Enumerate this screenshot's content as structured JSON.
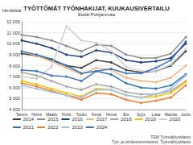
{
  "chart_data": {
    "type": "line",
    "title": "TYÖTTÖMÄT TYÖNHAKIJAT, KUUKAUSIVERTAILU",
    "subtitle": "Etelä-Pohjanmaa",
    "y_label": "Henkilöä",
    "source": [
      "TEM Työnvälitystilasto",
      "Työ- ja elinkeinoministeriö, Työnvälitystilasto"
    ],
    "categories": [
      "Tammi",
      "Helmi",
      "Maalis",
      "Huhti",
      "Touko",
      "Kesä",
      "Heinä",
      "Elo",
      "Syys",
      "Loka",
      "Marras",
      "Joulu"
    ],
    "ylim": [
      4000,
      12000
    ],
    "yticks": [
      {
        "value": 4000,
        "label": "4 000"
      },
      {
        "value": 5000,
        "label": "5 000"
      },
      {
        "value": 6000,
        "label": "6 000"
      },
      {
        "value": 7000,
        "label": "7 000"
      },
      {
        "value": 8000,
        "label": "8 000"
      },
      {
        "value": 9000,
        "label": "9 000"
      },
      {
        "value": 10000,
        "label": "10 000"
      },
      {
        "value": 11000,
        "label": "11 000"
      },
      {
        "value": 12000,
        "label": "12 000"
      }
    ],
    "grid": true,
    "legend": "bottom",
    "series": [
      {
        "name": "2014",
        "color": "#404040",
        "values": [
          9100,
          8900,
          8500,
          8000,
          7800,
          8500,
          8300,
          7600,
          7400,
          7500,
          8000,
          9300
        ]
      },
      {
        "name": "2015",
        "color": "#8c8c8c",
        "values": [
          10800,
          10600,
          10300,
          9800,
          9300,
          9900,
          9800,
          9000,
          8700,
          8700,
          9100,
          10600
        ]
      },
      {
        "name": "2016",
        "color": "#1f3f7a",
        "values": [
          10300,
          10000,
          9600,
          9000,
          8800,
          9400,
          9200,
          8500,
          8300,
          8400,
          8700,
          10000
        ]
      },
      {
        "name": "2017",
        "color": "#f4b183",
        "values": [
          9300,
          8900,
          8400,
          7800,
          7200,
          7800,
          7600,
          6900,
          6600,
          6500,
          6900,
          8000
        ]
      },
      {
        "name": "2018",
        "color": "#a6a6a6",
        "values": [
          7400,
          7100,
          6600,
          6100,
          5800,
          6300,
          6100,
          5600,
          5400,
          5400,
          5700,
          6600
        ]
      },
      {
        "name": "2019",
        "color": "#ffc000",
        "values": [
          6600,
          6300,
          5900,
          5500,
          5200,
          5900,
          5800,
          5300,
          5100,
          5200,
          5500,
          6500
        ]
      },
      {
        "name": "2020",
        "color": "#d0d0d0",
        "values": [
          7000,
          6800,
          7900,
          11600,
          10300,
          10100,
          9300,
          7900,
          7500,
          7500,
          8100,
          9500
        ]
      },
      {
        "name": "2021",
        "color": "#2e75b6",
        "values": [
          9300,
          9000,
          8600,
          8000,
          7300,
          7500,
          7200,
          6400,
          6000,
          5900,
          6200,
          7200
        ]
      },
      {
        "name": "2022",
        "color": "#ed7d31",
        "values": [
          6400,
          6100,
          5700,
          5300,
          4900,
          5500,
          5400,
          4900,
          4600,
          4800,
          5100,
          6200
        ]
      },
      {
        "name": "2023",
        "color": "#9dc3e6",
        "values": [
          6200,
          5900,
          5600,
          5300,
          5100,
          5800,
          5800,
          5300,
          5100,
          5400,
          5900,
          7100
        ]
      },
      {
        "name": "2024",
        "color": "#4472c4",
        "values": [
          7600,
          7500,
          7100,
          7000,
          6600,
          7500,
          7700,
          7300,
          7300,
          7800,
          8500,
          10200
        ]
      }
    ]
  }
}
